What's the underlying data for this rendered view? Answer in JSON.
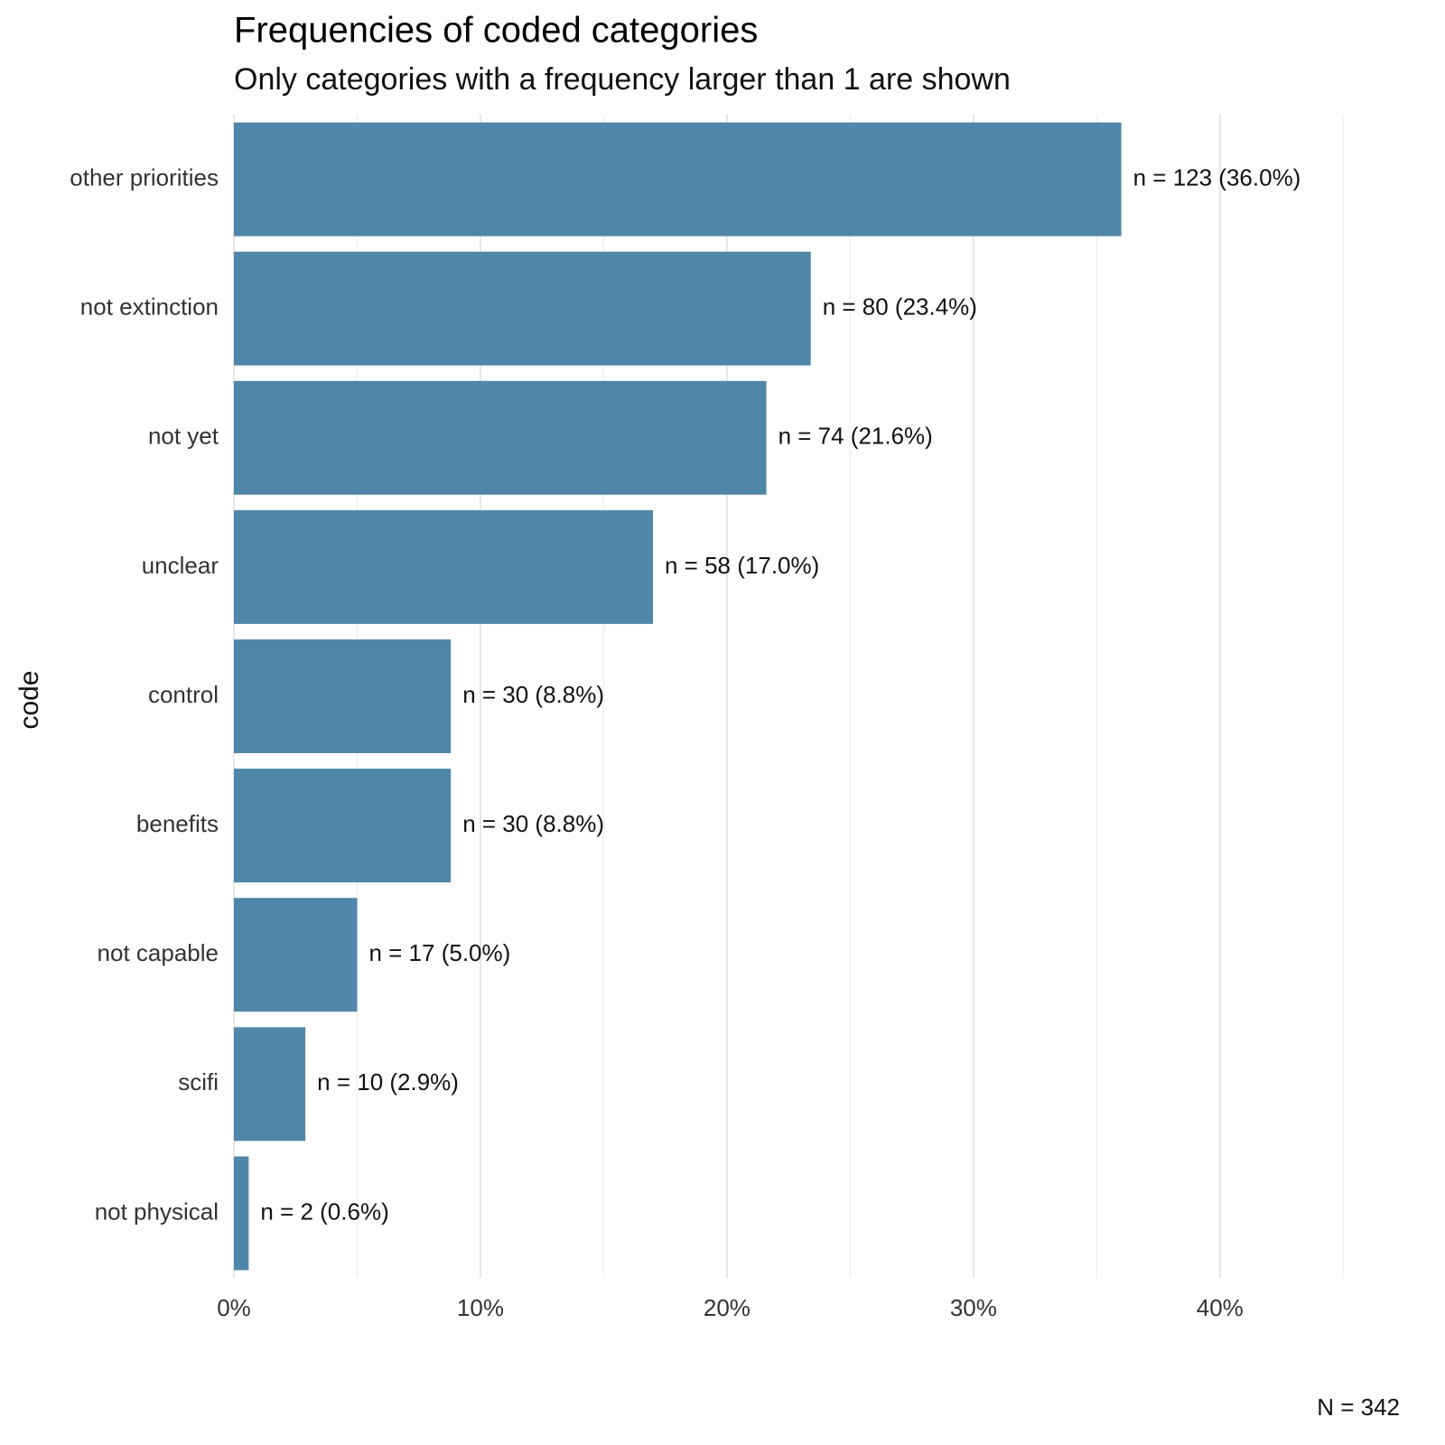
{
  "chart_data": {
    "type": "bar",
    "orientation": "horizontal",
    "title": "Frequencies of coded categories",
    "subtitle": "Only categories with a frequency larger than 1 are shown",
    "y_label": "code",
    "caption": "N = 342",
    "categories": [
      "other priorities",
      "not extinction",
      "not yet",
      "unclear",
      "control",
      "benefits",
      "not capable",
      "scifi",
      "not physical"
    ],
    "values": [
      36.0,
      23.4,
      21.6,
      17.0,
      8.8,
      8.8,
      5.0,
      2.9,
      0.6
    ],
    "value_labels": [
      "n = 123 (36.0%)",
      "n = 80 (23.4%)",
      "n = 74 (21.6%)",
      "n = 58 (17.0%)",
      "n = 30 (8.8%)",
      "n = 30 (8.8%)",
      "n = 17 (5.0%)",
      "n = 10 (2.9%)",
      "n = 2 (0.6%)"
    ],
    "color": "#5087a9",
    "xlim": [
      0,
      45.1
    ],
    "xticks": [
      {
        "value": 0,
        "label": "0%"
      },
      {
        "value": 10,
        "label": "10%"
      },
      {
        "value": 20,
        "label": "20%"
      },
      {
        "value": 30,
        "label": "30%"
      },
      {
        "value": 40,
        "label": "40%"
      }
    ],
    "x_minor_ticks": [
      5,
      15,
      25,
      35,
      45
    ],
    "grid": true
  }
}
